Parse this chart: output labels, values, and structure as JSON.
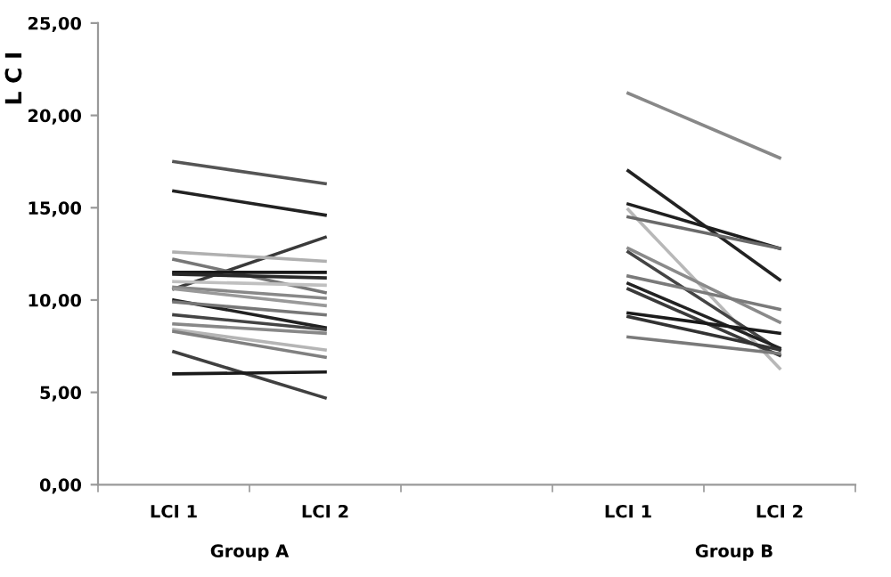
{
  "chart_data": {
    "type": "line",
    "ylabel": "L C I",
    "categories": [
      "LCI 1",
      "LCI 2",
      null,
      "LCI 1",
      "LCI 2"
    ],
    "annotations": [
      "Group A",
      "Group B"
    ],
    "ylim": [
      0,
      25
    ],
    "yticks": [
      {
        "value": 0,
        "label": "0,00"
      },
      {
        "value": 5,
        "label": "5,00"
      },
      {
        "value": 10,
        "label": "10,00"
      },
      {
        "value": 15,
        "label": "15,00"
      },
      {
        "value": 20,
        "label": "20,00"
      },
      {
        "value": 25,
        "label": "25,00"
      }
    ],
    "grid": false,
    "legend": false,
    "marker": "none",
    "line_style": "solid",
    "series": [
      {
        "color": "#555555",
        "values": [
          17.5,
          16.3,
          null,
          null,
          null
        ]
      },
      {
        "color": "#222222",
        "values": [
          15.9,
          14.6,
          null,
          null,
          null
        ]
      },
      {
        "color": "#3a3a3a",
        "values": [
          10.6,
          13.4,
          null,
          null,
          null
        ]
      },
      {
        "color": "#b0b0b0",
        "values": [
          12.6,
          12.1,
          null,
          null,
          null
        ]
      },
      {
        "color": "#777777",
        "values": [
          12.2,
          10.4,
          null,
          null,
          null
        ]
      },
      {
        "color": "#1a1a1a",
        "values": [
          11.5,
          11.5,
          null,
          null,
          null
        ]
      },
      {
        "color": "#2a2a2a",
        "values": [
          11.4,
          11.2,
          null,
          null,
          null
        ]
      },
      {
        "color": "#c0c0c0",
        "values": [
          11.0,
          10.8,
          null,
          null,
          null
        ]
      },
      {
        "color": "#888888",
        "values": [
          10.7,
          10.1,
          null,
          null,
          null
        ]
      },
      {
        "color": "#999999",
        "values": [
          10.6,
          9.7,
          null,
          null,
          null
        ]
      },
      {
        "color": "#222222",
        "values": [
          10.0,
          8.5,
          null,
          null,
          null
        ]
      },
      {
        "color": "#777777",
        "values": [
          9.9,
          9.2,
          null,
          null,
          null
        ]
      },
      {
        "color": "#444444",
        "values": [
          9.2,
          8.4,
          null,
          null,
          null
        ]
      },
      {
        "color": "#888888",
        "values": [
          8.7,
          8.2,
          null,
          null,
          null
        ]
      },
      {
        "color": "#b5b5b5",
        "values": [
          8.4,
          7.3,
          null,
          null,
          null
        ]
      },
      {
        "color": "#808080",
        "values": [
          8.3,
          6.9,
          null,
          null,
          null
        ]
      },
      {
        "color": "#404040",
        "values": [
          7.2,
          4.7,
          null,
          null,
          null
        ]
      },
      {
        "color": "#1a1a1a",
        "values": [
          6.0,
          6.1,
          null,
          null,
          null
        ]
      },
      {
        "color": "#888888",
        "values": [
          null,
          null,
          null,
          21.2,
          17.7
        ]
      },
      {
        "color": "#222222",
        "values": [
          null,
          null,
          null,
          17.0,
          11.1
        ]
      },
      {
        "color": "#1f1f1f",
        "values": [
          null,
          null,
          null,
          15.2,
          12.8
        ]
      },
      {
        "color": "#b8b8b8",
        "values": [
          null,
          null,
          null,
          14.9,
          6.3
        ]
      },
      {
        "color": "#6a6a6a",
        "values": [
          null,
          null,
          null,
          14.5,
          12.8
        ]
      },
      {
        "color": "#8a8a8a",
        "values": [
          null,
          null,
          null,
          12.8,
          8.8
        ]
      },
      {
        "color": "#444444",
        "values": [
          null,
          null,
          null,
          12.6,
          7.3
        ]
      },
      {
        "color": "#7a7a7a",
        "values": [
          null,
          null,
          null,
          11.3,
          9.5
        ]
      },
      {
        "color": "#222222",
        "values": [
          null,
          null,
          null,
          10.9,
          7.4
        ]
      },
      {
        "color": "#3a3a3a",
        "values": [
          null,
          null,
          null,
          10.6,
          7.0
        ]
      },
      {
        "color": "#1a1a1a",
        "values": [
          null,
          null,
          null,
          9.3,
          8.2
        ]
      },
      {
        "color": "#333333",
        "values": [
          null,
          null,
          null,
          9.1,
          7.3
        ]
      },
      {
        "color": "#7a7a7a",
        "values": [
          null,
          null,
          null,
          8.0,
          7.1
        ]
      }
    ]
  }
}
